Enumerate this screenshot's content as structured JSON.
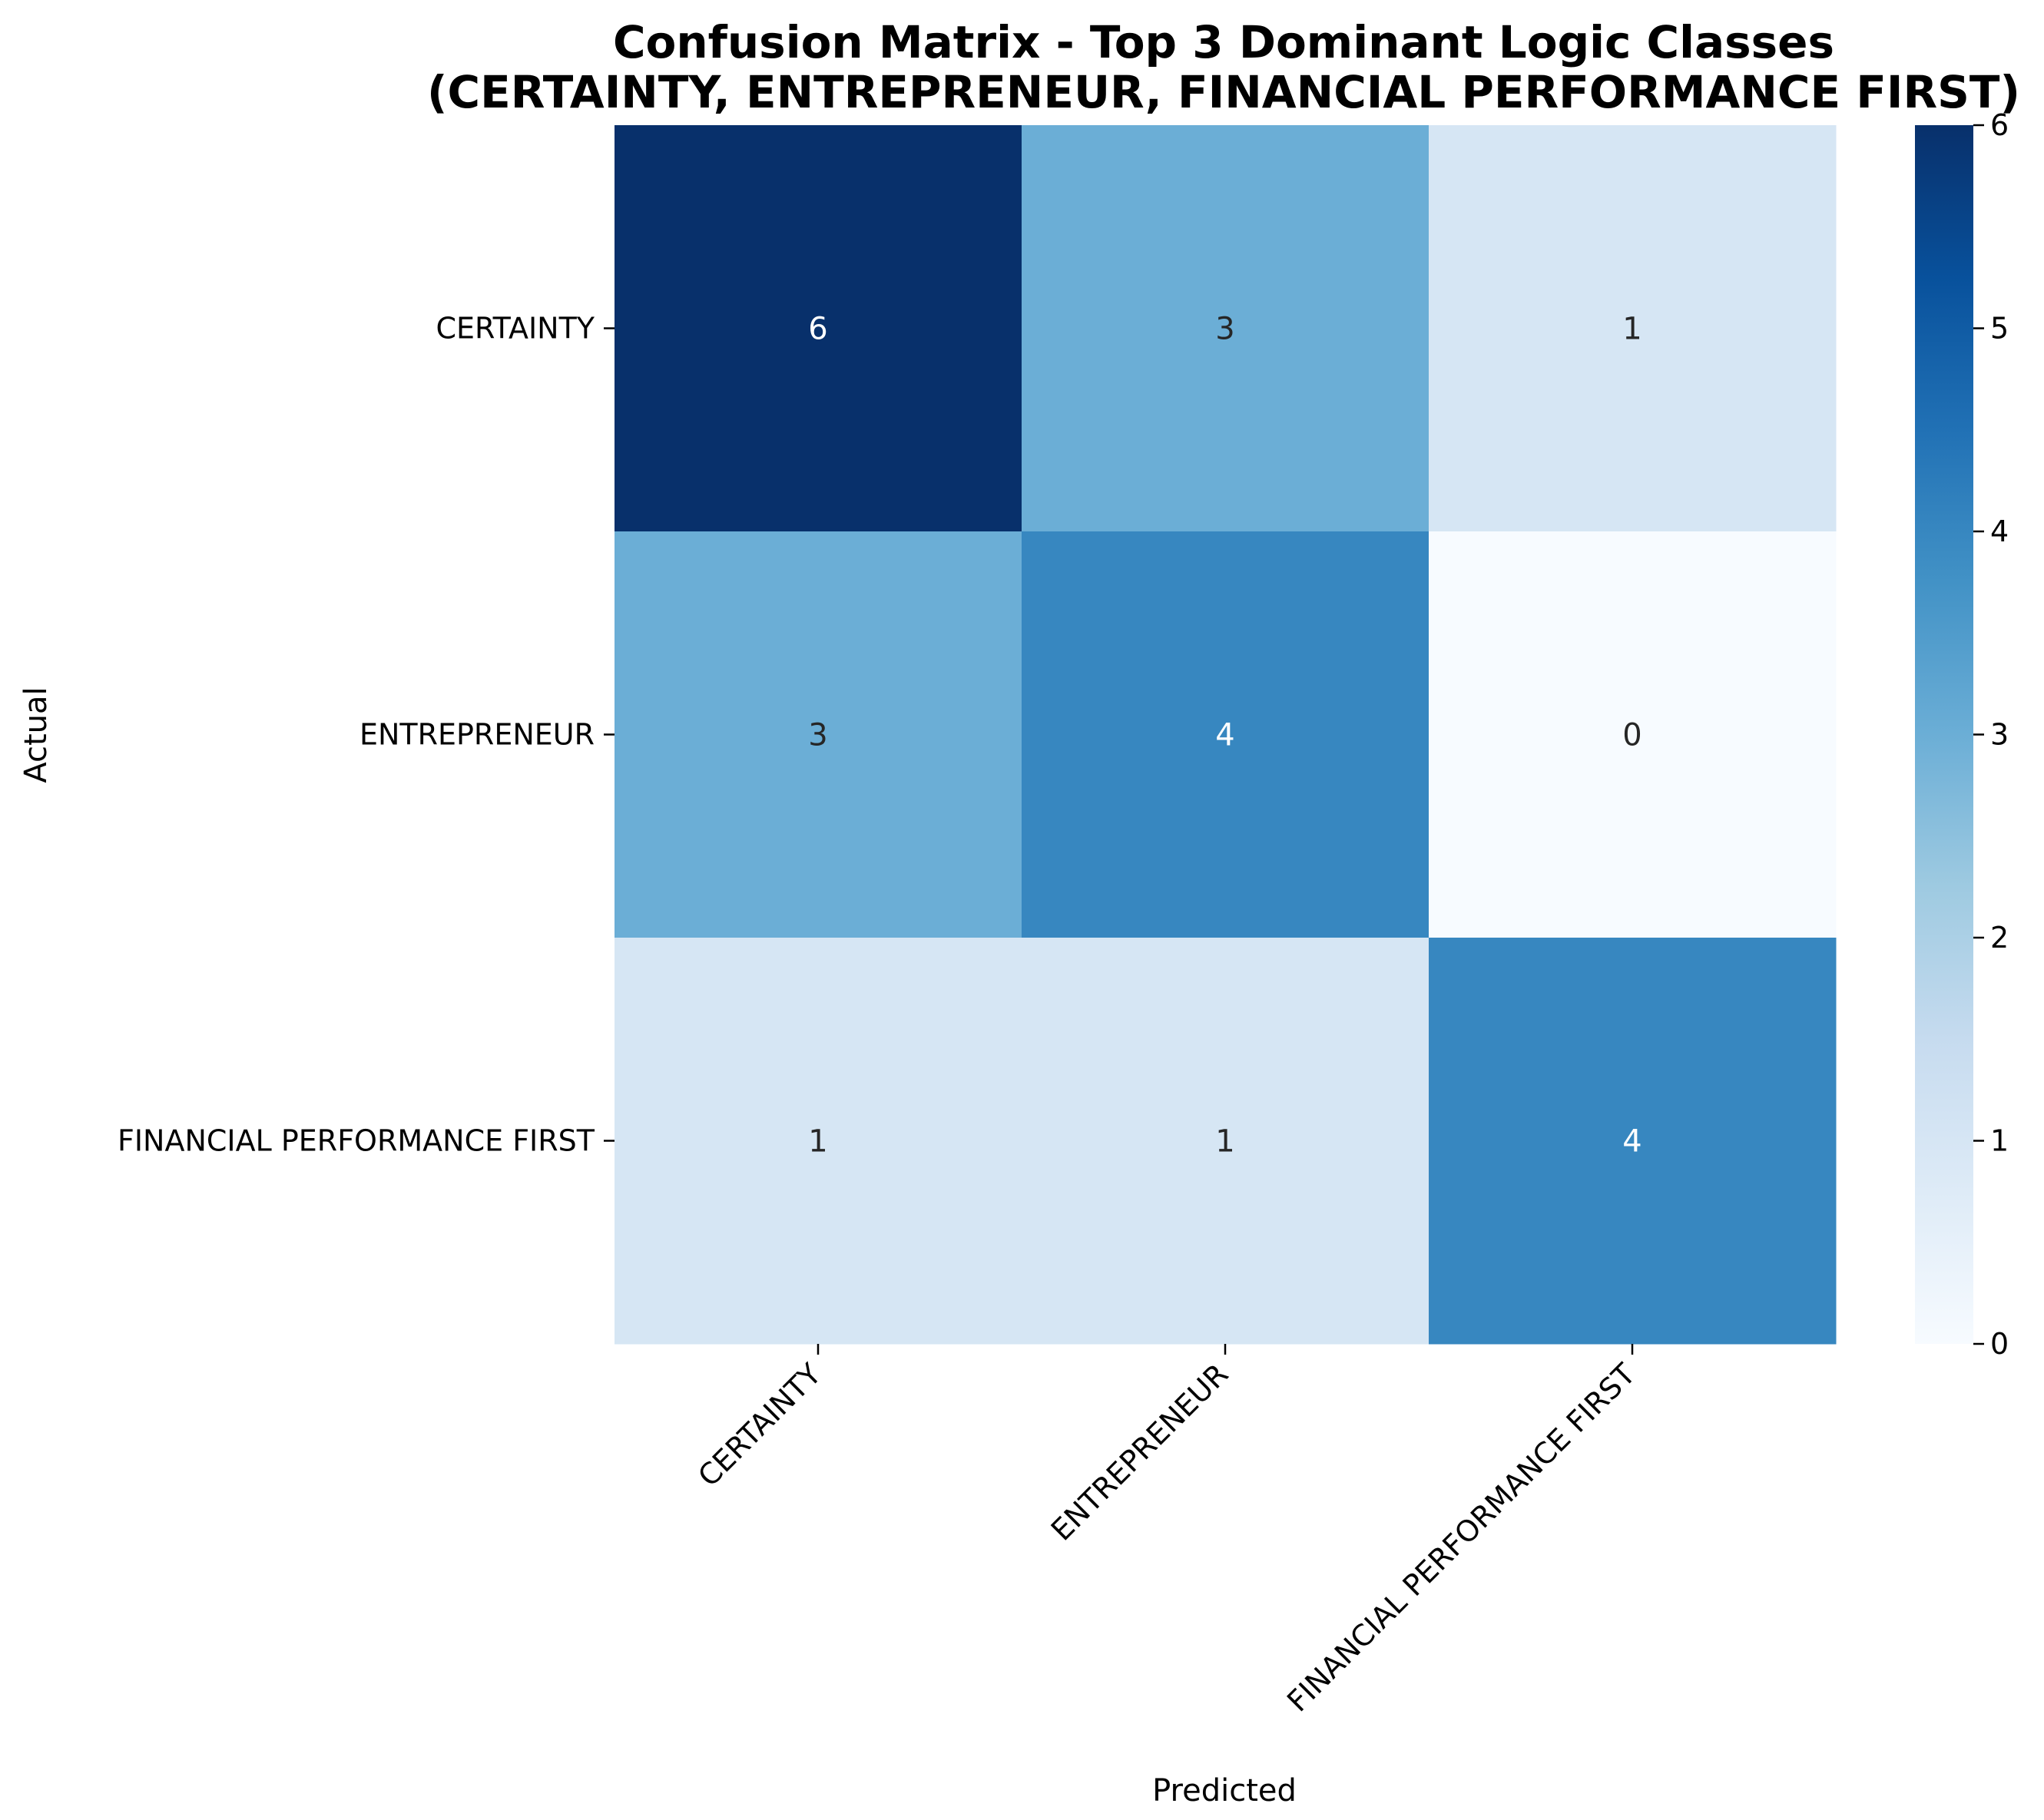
{
  "chart_data": {
    "type": "heatmap",
    "title": "Confusion Matrix - Top 3 Dominant Logic Classes",
    "subtitle": "(CERTAINTY, ENTREPRENEUR, FINANCIAL PERFORMANCE FIRST)",
    "xlabel": "Predicted",
    "ylabel": "Actual",
    "x_categories": [
      "CERTAINTY",
      "ENTREPRENEUR",
      "FINANCIAL PERFORMANCE FIRST"
    ],
    "y_categories": [
      "CERTAINTY",
      "ENTREPRENEUR",
      "FINANCIAL PERFORMANCE FIRST"
    ],
    "values": [
      [
        6,
        3,
        1
      ],
      [
        3,
        4,
        0
      ],
      [
        1,
        1,
        4
      ]
    ],
    "colorscale": "Blues",
    "colorbar": {
      "ticks": [
        "0",
        "1",
        "2",
        "3",
        "4",
        "5",
        "6"
      ],
      "range": [
        0,
        6
      ]
    },
    "grid": false
  }
}
